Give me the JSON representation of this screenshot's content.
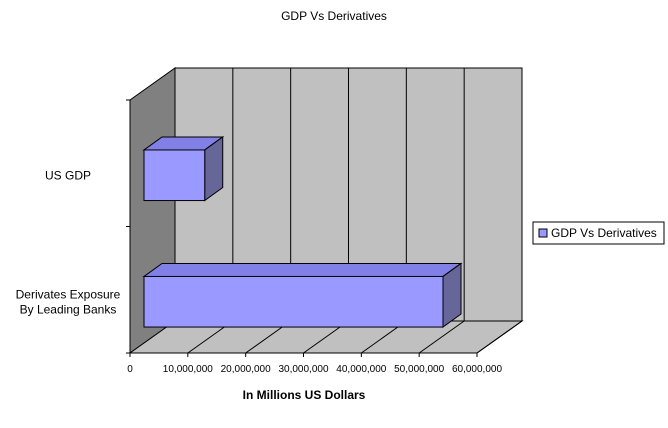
{
  "chart_data": {
    "type": "bar",
    "orientation": "horizontal",
    "style": "3d",
    "title": "GDP Vs Derivatives",
    "xlabel": "In Millions US Dollars",
    "ylabel": "",
    "categories": [
      "US GDP",
      "Derivates Exposure By Leading Banks"
    ],
    "category_lines": [
      [
        "US GDP"
      ],
      [
        "Derivates Exposure",
        "By Leading Banks"
      ]
    ],
    "series": [
      {
        "name": "GDP Vs Derivatives",
        "values": [
          10500000,
          51700000
        ]
      }
    ],
    "xlim": [
      0,
      60000000
    ],
    "xticks": [
      0,
      10000000,
      20000000,
      30000000,
      40000000,
      50000000,
      60000000
    ],
    "xtick_labels": [
      "0",
      "10,000,000",
      "20,000,000",
      "30,000,000",
      "40,000,000",
      "50,000,000",
      "60,000,000"
    ],
    "grid": true,
    "legend_position": "right",
    "colors": {
      "bar_front": "#9999ff",
      "bar_top": "#8080e6",
      "bar_side": "#666699",
      "back_wall": "#c0c0c0",
      "side_wall": "#808080",
      "floor": "#c0c0c0",
      "grid": "#000000"
    }
  }
}
